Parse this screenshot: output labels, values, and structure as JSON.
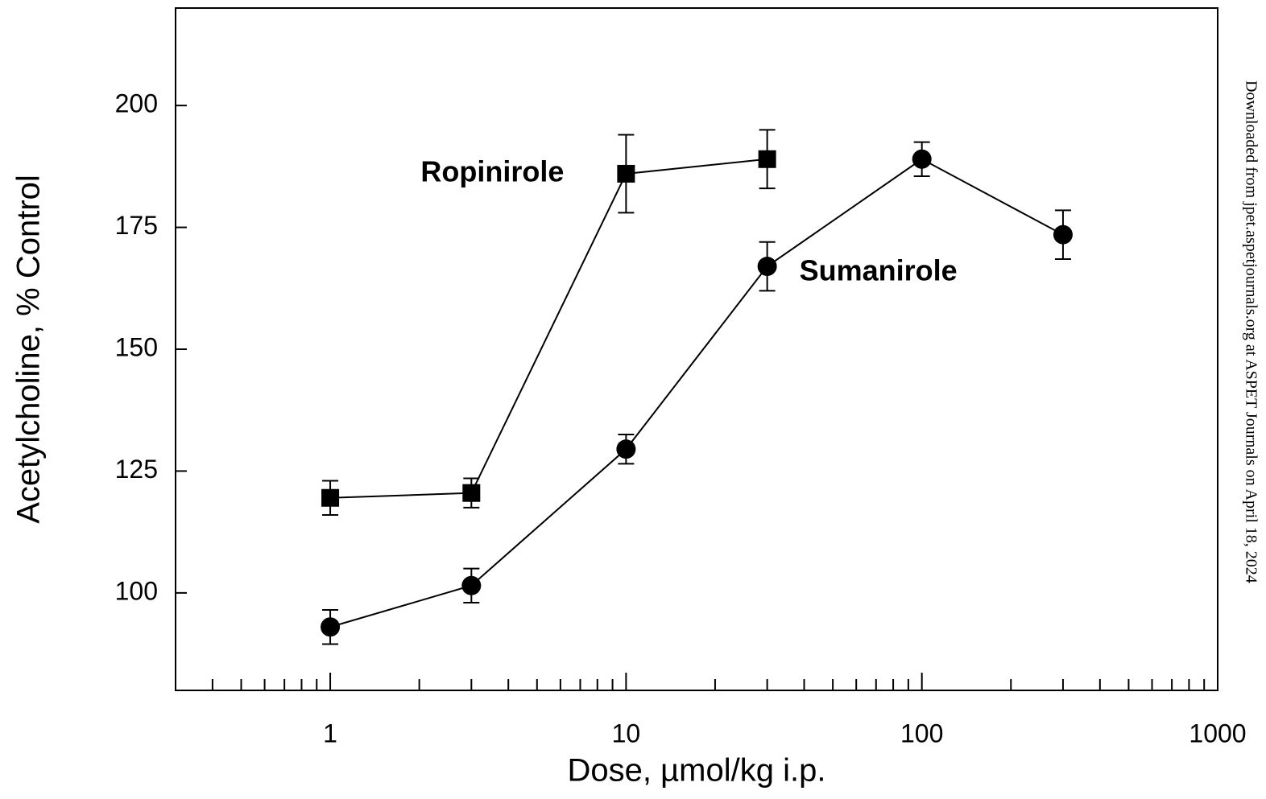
{
  "chart_data": {
    "type": "line",
    "xlabel": "Dose, µmol/kg i.p.",
    "ylabel": "Acetylcholine, % Control",
    "xscale": "log",
    "xlim": [
      0.3,
      1000
    ],
    "ylim": [
      80,
      220
    ],
    "xticks": [
      1,
      10,
      100,
      1000
    ],
    "xminorticks": [
      0.4,
      0.5,
      0.6,
      0.7,
      0.8,
      0.9,
      2,
      3,
      4,
      5,
      6,
      7,
      8,
      9,
      20,
      30,
      40,
      50,
      60,
      70,
      80,
      90,
      200,
      300,
      400,
      500,
      600,
      700,
      800,
      900
    ],
    "yticks": [
      100,
      125,
      150,
      175,
      200
    ],
    "grid": false,
    "series": [
      {
        "name": "Ropinirole",
        "color": "#000000",
        "marker": "square",
        "x": [
          1,
          3,
          10,
          30
        ],
        "values": [
          119.5,
          120.5,
          186,
          189
        ],
        "errors": [
          3.5,
          3,
          8,
          6
        ]
      },
      {
        "name": "Sumanirole",
        "color": "#000000",
        "marker": "circle",
        "x": [
          1,
          3,
          10,
          30,
          100,
          300
        ],
        "values": [
          93,
          101.5,
          129.5,
          167,
          189,
          173.5
        ],
        "errors": [
          3.5,
          3.5,
          3,
          5,
          3.5,
          5
        ]
      }
    ]
  },
  "watermark": "Downloaded from jpet.aspetjournals.org at ASPET Journals on April 18, 2024"
}
